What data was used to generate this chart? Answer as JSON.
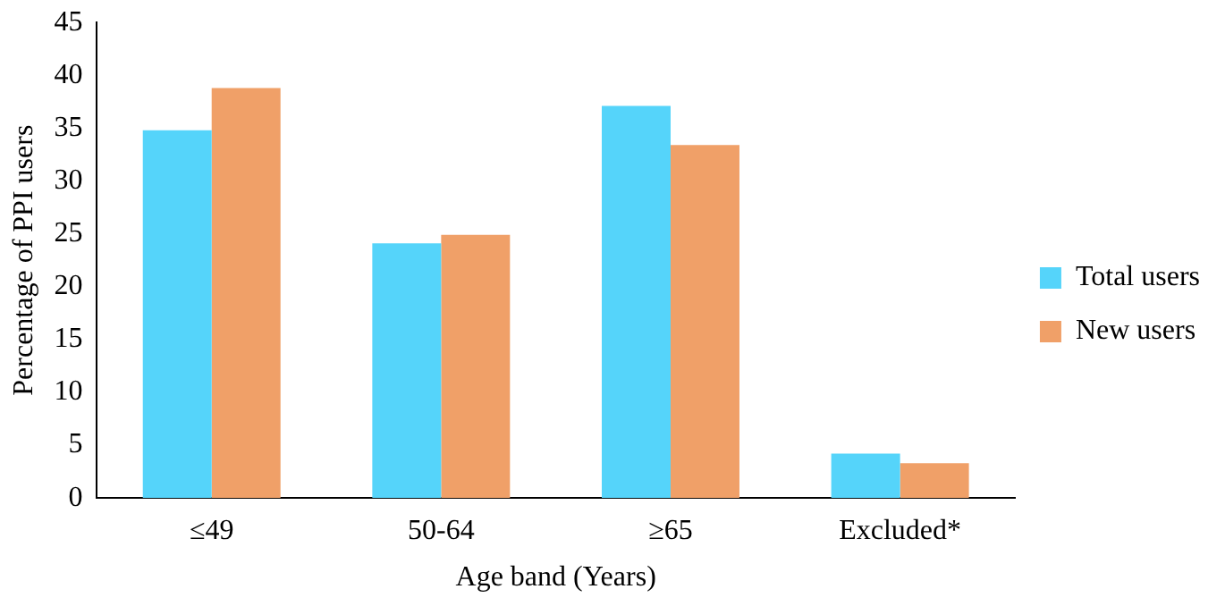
{
  "chart_data": {
    "type": "bar",
    "xlabel": "Age band (Years)",
    "ylabel": "Percentage of PPI users",
    "categories": [
      "≤49",
      "50-64",
      "≥65",
      "Excluded*"
    ],
    "series": [
      {
        "name": "Total users",
        "color": "#55d4fa",
        "values": [
          34.8,
          24.1,
          37.1,
          4.2
        ]
      },
      {
        "name": "New users",
        "color": "#f0a068",
        "values": [
          38.8,
          24.9,
          33.4,
          3.3
        ]
      }
    ],
    "ylim": [
      0,
      45
    ],
    "yticks": [
      0,
      5,
      10,
      15,
      20,
      25,
      30,
      35,
      40,
      45
    ],
    "grid": false,
    "legend": "right"
  }
}
